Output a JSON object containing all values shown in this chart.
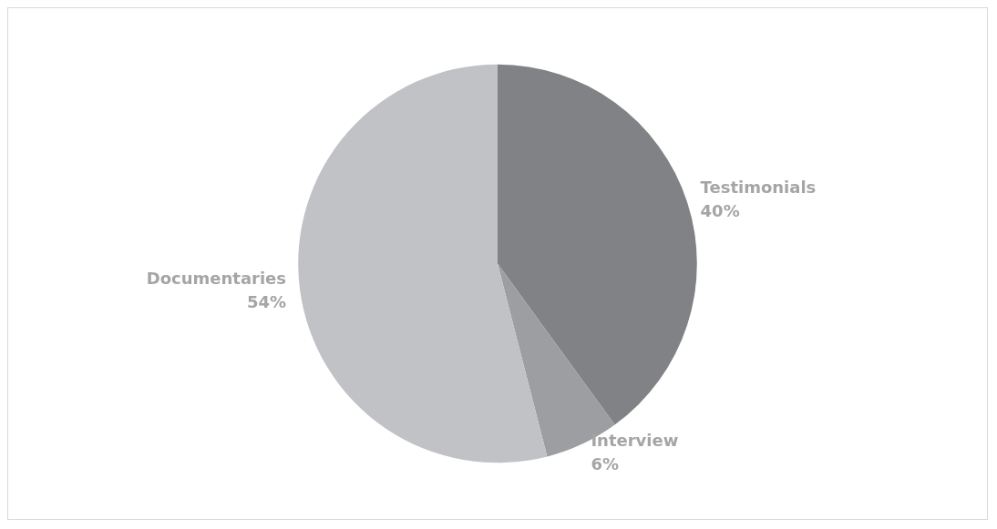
{
  "chart_data": {
    "type": "pie",
    "categories": [
      "Testimonials",
      "Interview",
      "Documentaries"
    ],
    "values": [
      40,
      6,
      54
    ],
    "colors": [
      "#818285",
      "#9d9ea2",
      "#c1c2c6"
    ],
    "value_labels": [
      "40%",
      "6%",
      "54%"
    ],
    "legend": false
  }
}
